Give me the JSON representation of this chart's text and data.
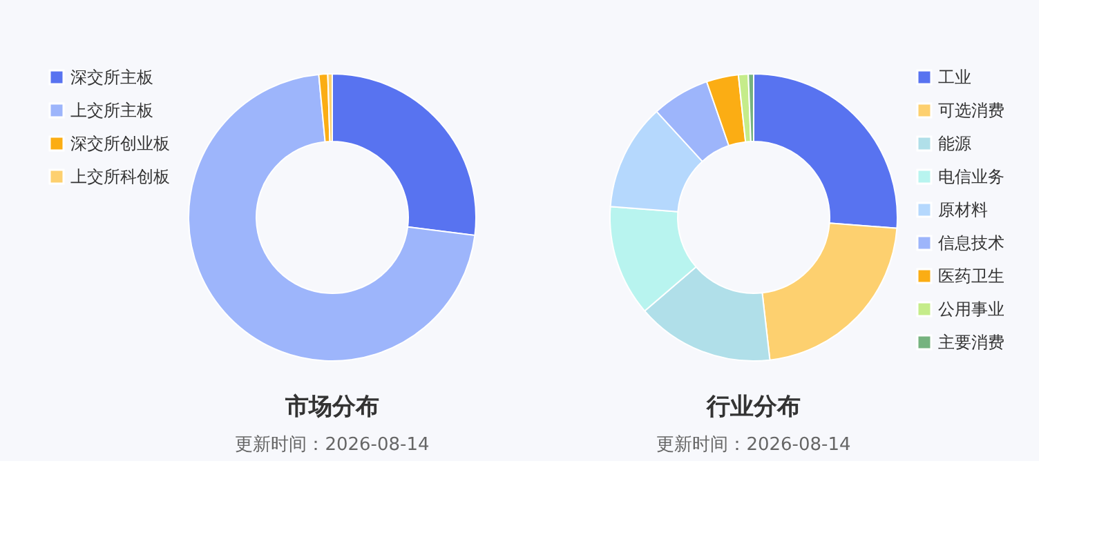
{
  "chart_data": [
    {
      "type": "donut",
      "title": "市场分布",
      "subtitle": "更新时间：2026-08-14",
      "legend": "left",
      "categories": [
        "深交所主板",
        "上交所主板",
        "深交所创业板",
        "上交所科创板"
      ],
      "values": [
        27,
        71.5,
        1,
        0.5
      ],
      "colors": [
        "#5873f0",
        "#9db5fb",
        "#fbad14",
        "#fdd06f"
      ]
    },
    {
      "type": "donut",
      "title": "行业分布",
      "subtitle": "更新时间：2026-08-14",
      "legend": "right",
      "categories": [
        "工业",
        "可选消费",
        "能源",
        "电信业务",
        "原材料",
        "信息技术",
        "医药卫生",
        "公用事业",
        "主要消费"
      ],
      "values": [
        26.2,
        22,
        15.5,
        12.5,
        12,
        6.5,
        3.6,
        1.1,
        0.6
      ],
      "colors": [
        "#5873f0",
        "#fdd06f",
        "#b0dfe9",
        "#b8f4ef",
        "#b5d8fd",
        "#9db5fb",
        "#fbad14",
        "#c5ec8a",
        "#76b37f"
      ]
    }
  ]
}
